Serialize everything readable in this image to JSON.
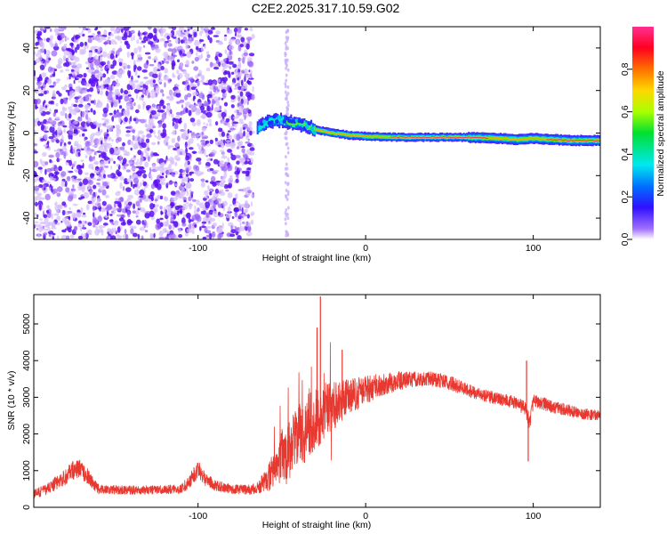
{
  "title": "C2E2.2025.317.10.59.G02",
  "chart_data": [
    {
      "type": "heatmap",
      "name": "spectrogram",
      "xlabel": "Height of straight line (km)",
      "ylabel": "Frequency (Hz)",
      "xlim": [
        -198,
        140
      ],
      "ylim": [
        -50,
        50
      ],
      "x_ticks": [
        -100,
        0,
        100
      ],
      "y_ticks": [
        -40,
        -20,
        0,
        20,
        40
      ],
      "colorbar": {
        "label": "Normalized spectral amplitude",
        "range": [
          0,
          1
        ],
        "ticks": [
          0.0,
          0.2,
          0.4,
          0.6,
          0.8
        ]
      },
      "noise_region_x": [
        -198,
        -67
      ],
      "sparse_column_x": [
        -48,
        -46
      ],
      "ridge": [
        {
          "x": -65,
          "freq": 2,
          "amp": 0.3
        },
        {
          "x": -60,
          "freq": 5,
          "amp": 0.4
        },
        {
          "x": -52,
          "freq": 6,
          "amp": 0.45
        },
        {
          "x": -45,
          "freq": 5,
          "amp": 0.55
        },
        {
          "x": -38,
          "freq": 4,
          "amp": 0.6
        },
        {
          "x": -30,
          "freq": 1.5,
          "amp": 0.7
        },
        {
          "x": -20,
          "freq": 0,
          "amp": 0.75
        },
        {
          "x": -10,
          "freq": -1,
          "amp": 0.8
        },
        {
          "x": 0,
          "freq": -1.5,
          "amp": 0.85
        },
        {
          "x": 20,
          "freq": -2,
          "amp": 0.95
        },
        {
          "x": 40,
          "freq": -2,
          "amp": 1.0
        },
        {
          "x": 60,
          "freq": -2,
          "amp": 0.95
        },
        {
          "x": 80,
          "freq": -2.5,
          "amp": 0.9
        },
        {
          "x": 90,
          "freq": -3,
          "amp": 0.85
        },
        {
          "x": 100,
          "freq": -2.5,
          "amp": 0.9
        },
        {
          "x": 120,
          "freq": -3.5,
          "amp": 0.95
        },
        {
          "x": 140,
          "freq": -3.5,
          "amp": 0.95
        }
      ]
    },
    {
      "type": "line",
      "name": "snr",
      "xlabel": "Height of straight line (km)",
      "ylabel": "SNR (10 * v/v)",
      "xlim": [
        -198,
        140
      ],
      "ylim": [
        0,
        5800
      ],
      "x_ticks": [
        -100,
        0,
        100
      ],
      "y_ticks": [
        0,
        1000,
        2000,
        3000,
        4000,
        5000
      ],
      "color": "#e8382f",
      "x": [
        -198,
        -190,
        -180,
        -175,
        -170,
        -165,
        -160,
        -150,
        -140,
        -130,
        -120,
        -110,
        -105,
        -100,
        -95,
        -90,
        -80,
        -70,
        -65,
        -60,
        -55,
        -50,
        -45,
        -40,
        -35,
        -30,
        -26,
        -22,
        -18,
        -15,
        -10,
        -5,
        0,
        10,
        20,
        30,
        40,
        50,
        60,
        70,
        80,
        90,
        95,
        98,
        100,
        105,
        110,
        120,
        130,
        140
      ],
      "y": [
        350,
        500,
        800,
        1000,
        1050,
        800,
        500,
        480,
        470,
        470,
        480,
        500,
        700,
        1050,
        750,
        600,
        500,
        480,
        520,
        700,
        1000,
        1400,
        1600,
        1900,
        2200,
        2400,
        2600,
        2700,
        2800,
        2900,
        3000,
        3100,
        3200,
        3350,
        3450,
        3500,
        3500,
        3400,
        3200,
        3050,
        2950,
        2850,
        2700,
        2300,
        2900,
        2850,
        2750,
        2650,
        2550,
        2500
      ],
      "noise_amp": [
        120,
        150,
        220,
        250,
        250,
        200,
        140,
        120,
        120,
        120,
        120,
        130,
        200,
        250,
        200,
        150,
        130,
        130,
        150,
        300,
        500,
        700,
        800,
        900,
        900,
        900,
        800,
        700,
        650,
        600,
        500,
        450,
        400,
        300,
        250,
        200,
        200,
        200,
        180,
        170,
        170,
        180,
        200,
        200,
        200,
        180,
        170,
        160,
        150,
        150
      ],
      "spikes": [
        {
          "x": -27,
          "y": 5750
        },
        {
          "x": -29,
          "y": 4900
        },
        {
          "x": -14,
          "y": 4300
        },
        {
          "x": -40,
          "y": 2500
        },
        {
          "x": 96,
          "y": 4000
        },
        {
          "x": 97,
          "y": 1250
        }
      ]
    }
  ]
}
